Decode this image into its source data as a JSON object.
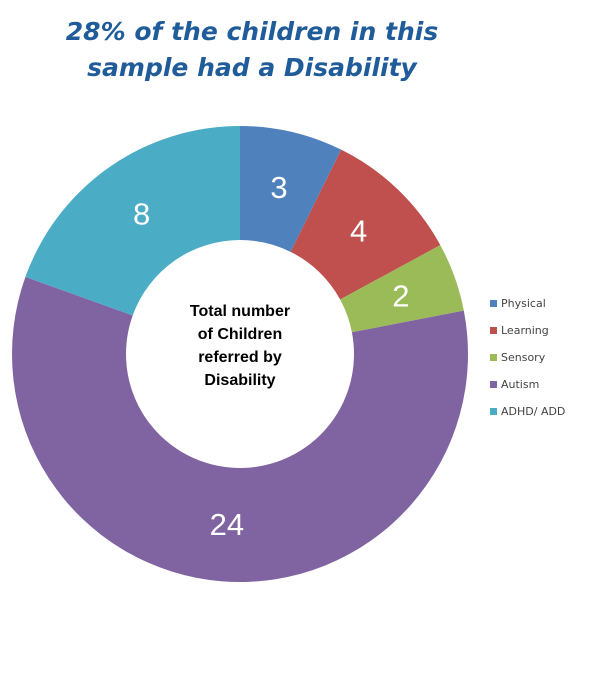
{
  "title": {
    "line1": "28% of the children in this",
    "line2": "sample had a Disability"
  },
  "chart_data": {
    "type": "pie",
    "donut": true,
    "center_label": [
      "Total number",
      "of Children",
      "referred by",
      "Disability"
    ],
    "categories": [
      "Physical",
      "Learning",
      "Sensory",
      "Autism",
      "ADHD/ ADD"
    ],
    "values": [
      3,
      4,
      2,
      24,
      8
    ],
    "data_labels": [
      "3",
      "4",
      "2",
      "24",
      "8"
    ],
    "colors": [
      "#4f81bd",
      "#c0504d",
      "#9bbb59",
      "#8064a2",
      "#4bacc6"
    ],
    "start_angle": "12 o'clock",
    "direction": "clockwise",
    "legend_position": "right"
  }
}
